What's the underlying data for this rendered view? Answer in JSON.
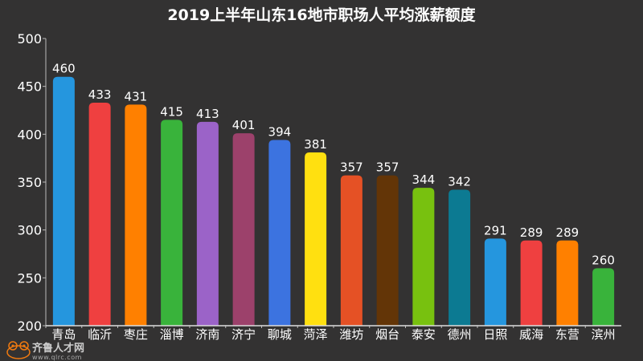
{
  "chart_data": {
    "type": "bar",
    "title": "2019上半年山东16地市职场人平均涨薪额度",
    "categories": [
      "青岛",
      "临沂",
      "枣庄",
      "淄博",
      "济南",
      "济宁",
      "聊城",
      "菏泽",
      "潍坊",
      "烟台",
      "泰安",
      "德州",
      "日照",
      "威海",
      "东营",
      "滨州"
    ],
    "values": [
      460,
      433,
      431,
      415,
      413,
      401,
      394,
      381,
      357,
      357,
      344,
      342,
      291,
      289,
      289,
      260
    ],
    "colors": [
      "#2596de",
      "#ef4040",
      "#ff8000",
      "#39b33b",
      "#9b63c8",
      "#9c416b",
      "#3c73e0",
      "#ffe010",
      "#e55125",
      "#633507",
      "#78c10f",
      "#0c7a92",
      "#2596de",
      "#ef4040",
      "#ff8000",
      "#39b33b"
    ],
    "ylim": [
      200,
      500
    ],
    "yticks": [
      200,
      250,
      300,
      350,
      400,
      450,
      500
    ],
    "xlabel": "",
    "ylabel": "",
    "grid": false,
    "data_labels": true
  },
  "watermark": {
    "name": "齐鲁人才网",
    "url": "www.qlrc.com"
  },
  "background": "#333232"
}
